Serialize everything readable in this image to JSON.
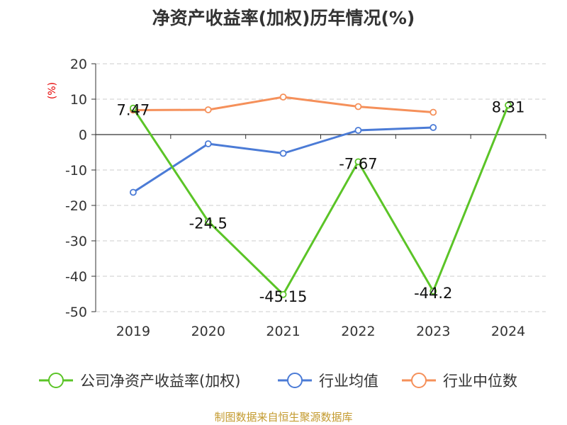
{
  "title": "净资产收益率(加权)历年情况(%)",
  "source_note": "制图数据来自恒生聚源数据库",
  "chart_data": {
    "type": "line",
    "title": "净资产收益率(加权)历年情况(%)",
    "ylabel": "(%)",
    "ylim": [
      -50,
      20
    ],
    "yticks": [
      20,
      10,
      0,
      -10,
      -20,
      -30,
      -40,
      -50
    ],
    "categories": [
      "2019",
      "2020",
      "2021",
      "2022",
      "2023",
      "2024"
    ],
    "grid": true,
    "legend_position": "bottom",
    "series": [
      {
        "name": "公司净资产收益率(加权)",
        "color": "#5bc427",
        "values": [
          7.47,
          -24.5,
          -45.15,
          -7.67,
          -44.2,
          8.31
        ],
        "labels": [
          "7.47",
          "-24.5",
          "-45.15",
          "-7.67",
          "-44.2",
          "8.31"
        ]
      },
      {
        "name": "行业均值",
        "color": "#4b7bd6",
        "values": [
          -16.3,
          -2.6,
          -5.3,
          1.2,
          2.0,
          null
        ]
      },
      {
        "name": "行业中位数",
        "color": "#f5905a",
        "values": [
          6.9,
          7.0,
          10.6,
          7.9,
          6.3,
          null
        ]
      }
    ]
  }
}
